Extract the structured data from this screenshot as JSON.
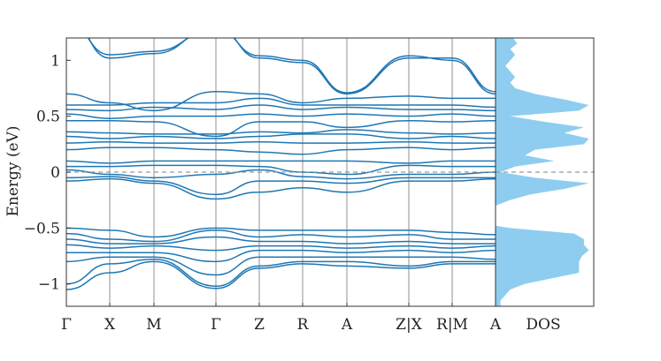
{
  "chart_data": {
    "type": "line",
    "ylabel": "Energy (eV)",
    "ylim": [
      -1.2,
      1.2
    ],
    "yticks": [
      {
        "value": 1,
        "label": "1"
      },
      {
        "value": 0.5,
        "label": "0.5"
      },
      {
        "value": 0,
        "label": "0"
      },
      {
        "value": -0.5,
        "label": "−0.5"
      },
      {
        "value": -1,
        "label": "−1"
      }
    ],
    "xticks": [
      "Γ",
      "X",
      "M",
      "Γ",
      "Z",
      "R",
      "A",
      "Z|X",
      "R|M",
      "A"
    ],
    "dos_label": "DOS",
    "fermi_level": 0,
    "colors": {
      "bands": "#1f77b4",
      "dos_fill": "#8ecdf0",
      "fermi_line": "#999999",
      "vlines": "#777777"
    },
    "bands": {
      "k": [
        0,
        1,
        2,
        3,
        4,
        5,
        6,
        7,
        8,
        9
      ],
      "series": [
        [
          1.4,
          1.02,
          1.06,
          1.3,
          1.02,
          0.98,
          0.7,
          1.02,
          1.02,
          0.72
        ],
        [
          1.35,
          1.05,
          1.08,
          1.28,
          1.04,
          1.0,
          0.71,
          1.04,
          1.0,
          0.7
        ],
        [
          0.7,
          0.62,
          0.55,
          0.72,
          0.7,
          0.62,
          0.66,
          0.68,
          0.66,
          0.66
        ],
        [
          0.6,
          0.6,
          0.62,
          0.62,
          0.66,
          0.6,
          0.6,
          0.6,
          0.6,
          0.58
        ],
        [
          0.56,
          0.55,
          0.58,
          0.56,
          0.6,
          0.56,
          0.58,
          0.56,
          0.56,
          0.55
        ],
        [
          0.52,
          0.48,
          0.5,
          0.5,
          0.52,
          0.5,
          0.52,
          0.5,
          0.52,
          0.5
        ],
        [
          0.46,
          0.46,
          0.45,
          0.32,
          0.45,
          0.45,
          0.4,
          0.46,
          0.45,
          0.46
        ],
        [
          0.36,
          0.35,
          0.34,
          0.34,
          0.36,
          0.35,
          0.38,
          0.35,
          0.34,
          0.35
        ],
        [
          0.32,
          0.3,
          0.32,
          0.3,
          0.32,
          0.34,
          0.34,
          0.3,
          0.32,
          0.3
        ],
        [
          0.26,
          0.27,
          0.26,
          0.26,
          0.27,
          0.26,
          0.26,
          0.27,
          0.26,
          0.26
        ],
        [
          0.2,
          0.22,
          0.22,
          0.2,
          0.18,
          0.16,
          0.2,
          0.22,
          0.2,
          0.22
        ],
        [
          0.1,
          0.08,
          0.1,
          0.1,
          0.1,
          0.1,
          0.1,
          0.08,
          0.1,
          0.1
        ],
        [
          0.05,
          0.05,
          0.06,
          0.06,
          0.05,
          0.0,
          -0.02,
          0.06,
          0.05,
          0.05
        ],
        [
          0.02,
          -0.02,
          -0.05,
          -0.02,
          0.02,
          -0.04,
          -0.06,
          -0.02,
          -0.02,
          0.0
        ],
        [
          -0.05,
          -0.04,
          -0.08,
          -0.2,
          -0.08,
          -0.08,
          -0.1,
          -0.05,
          -0.05,
          -0.05
        ],
        [
          -0.08,
          -0.06,
          -0.1,
          -0.24,
          -0.18,
          -0.14,
          -0.18,
          -0.08,
          -0.08,
          -0.06
        ],
        [
          -0.5,
          -0.52,
          -0.58,
          -0.5,
          -0.52,
          -0.52,
          -0.52,
          -0.52,
          -0.54,
          -0.56
        ],
        [
          -0.55,
          -0.6,
          -0.62,
          -0.52,
          -0.58,
          -0.56,
          -0.58,
          -0.56,
          -0.6,
          -0.6
        ],
        [
          -0.6,
          -0.64,
          -0.64,
          -0.58,
          -0.62,
          -0.62,
          -0.64,
          -0.62,
          -0.64,
          -0.64
        ],
        [
          -0.65,
          -0.68,
          -0.66,
          -0.7,
          -0.66,
          -0.66,
          -0.68,
          -0.66,
          -0.68,
          -0.66
        ],
        [
          -0.72,
          -0.72,
          -0.72,
          -0.8,
          -0.7,
          -0.7,
          -0.72,
          -0.7,
          -0.72,
          -0.7
        ],
        [
          -0.8,
          -0.76,
          -0.76,
          -0.92,
          -0.76,
          -0.76,
          -0.76,
          -0.76,
          -0.76,
          -0.78
        ],
        [
          -1.0,
          -0.82,
          -0.78,
          -1.02,
          -0.84,
          -0.8,
          -0.8,
          -0.84,
          -0.8,
          -0.8
        ],
        [
          -1.05,
          -0.9,
          -0.8,
          -1.04,
          -0.86,
          -0.82,
          -0.84,
          -0.86,
          -0.82,
          -0.82
        ]
      ]
    },
    "dos": {
      "energy": [
        -1.2,
        -1.15,
        -1.05,
        -1.0,
        -0.9,
        -0.8,
        -0.75,
        -0.7,
        -0.65,
        -0.6,
        -0.55,
        -0.5,
        -0.48,
        -0.3,
        -0.25,
        -0.2,
        -0.15,
        -0.1,
        -0.05,
        0.0,
        0.05,
        0.1,
        0.15,
        0.2,
        0.25,
        0.3,
        0.35,
        0.4,
        0.45,
        0.5,
        0.55,
        0.6,
        0.65,
        0.7,
        0.75,
        0.8,
        0.85,
        0.9,
        0.95,
        1.0,
        1.05,
        1.1,
        1.15,
        1.2
      ],
      "value": [
        0.05,
        0.05,
        0.15,
        0.3,
        0.85,
        0.85,
        0.88,
        0.95,
        0.9,
        0.9,
        0.8,
        0.15,
        0.0,
        0.0,
        0.15,
        0.35,
        0.7,
        0.95,
        0.4,
        0.05,
        0.2,
        0.6,
        0.3,
        0.4,
        0.9,
        0.95,
        0.7,
        0.9,
        0.5,
        0.15,
        0.85,
        0.95,
        0.7,
        0.4,
        0.2,
        0.15,
        0.2,
        0.15,
        0.1,
        0.15,
        0.2,
        0.15,
        0.22,
        0.18
      ]
    }
  }
}
